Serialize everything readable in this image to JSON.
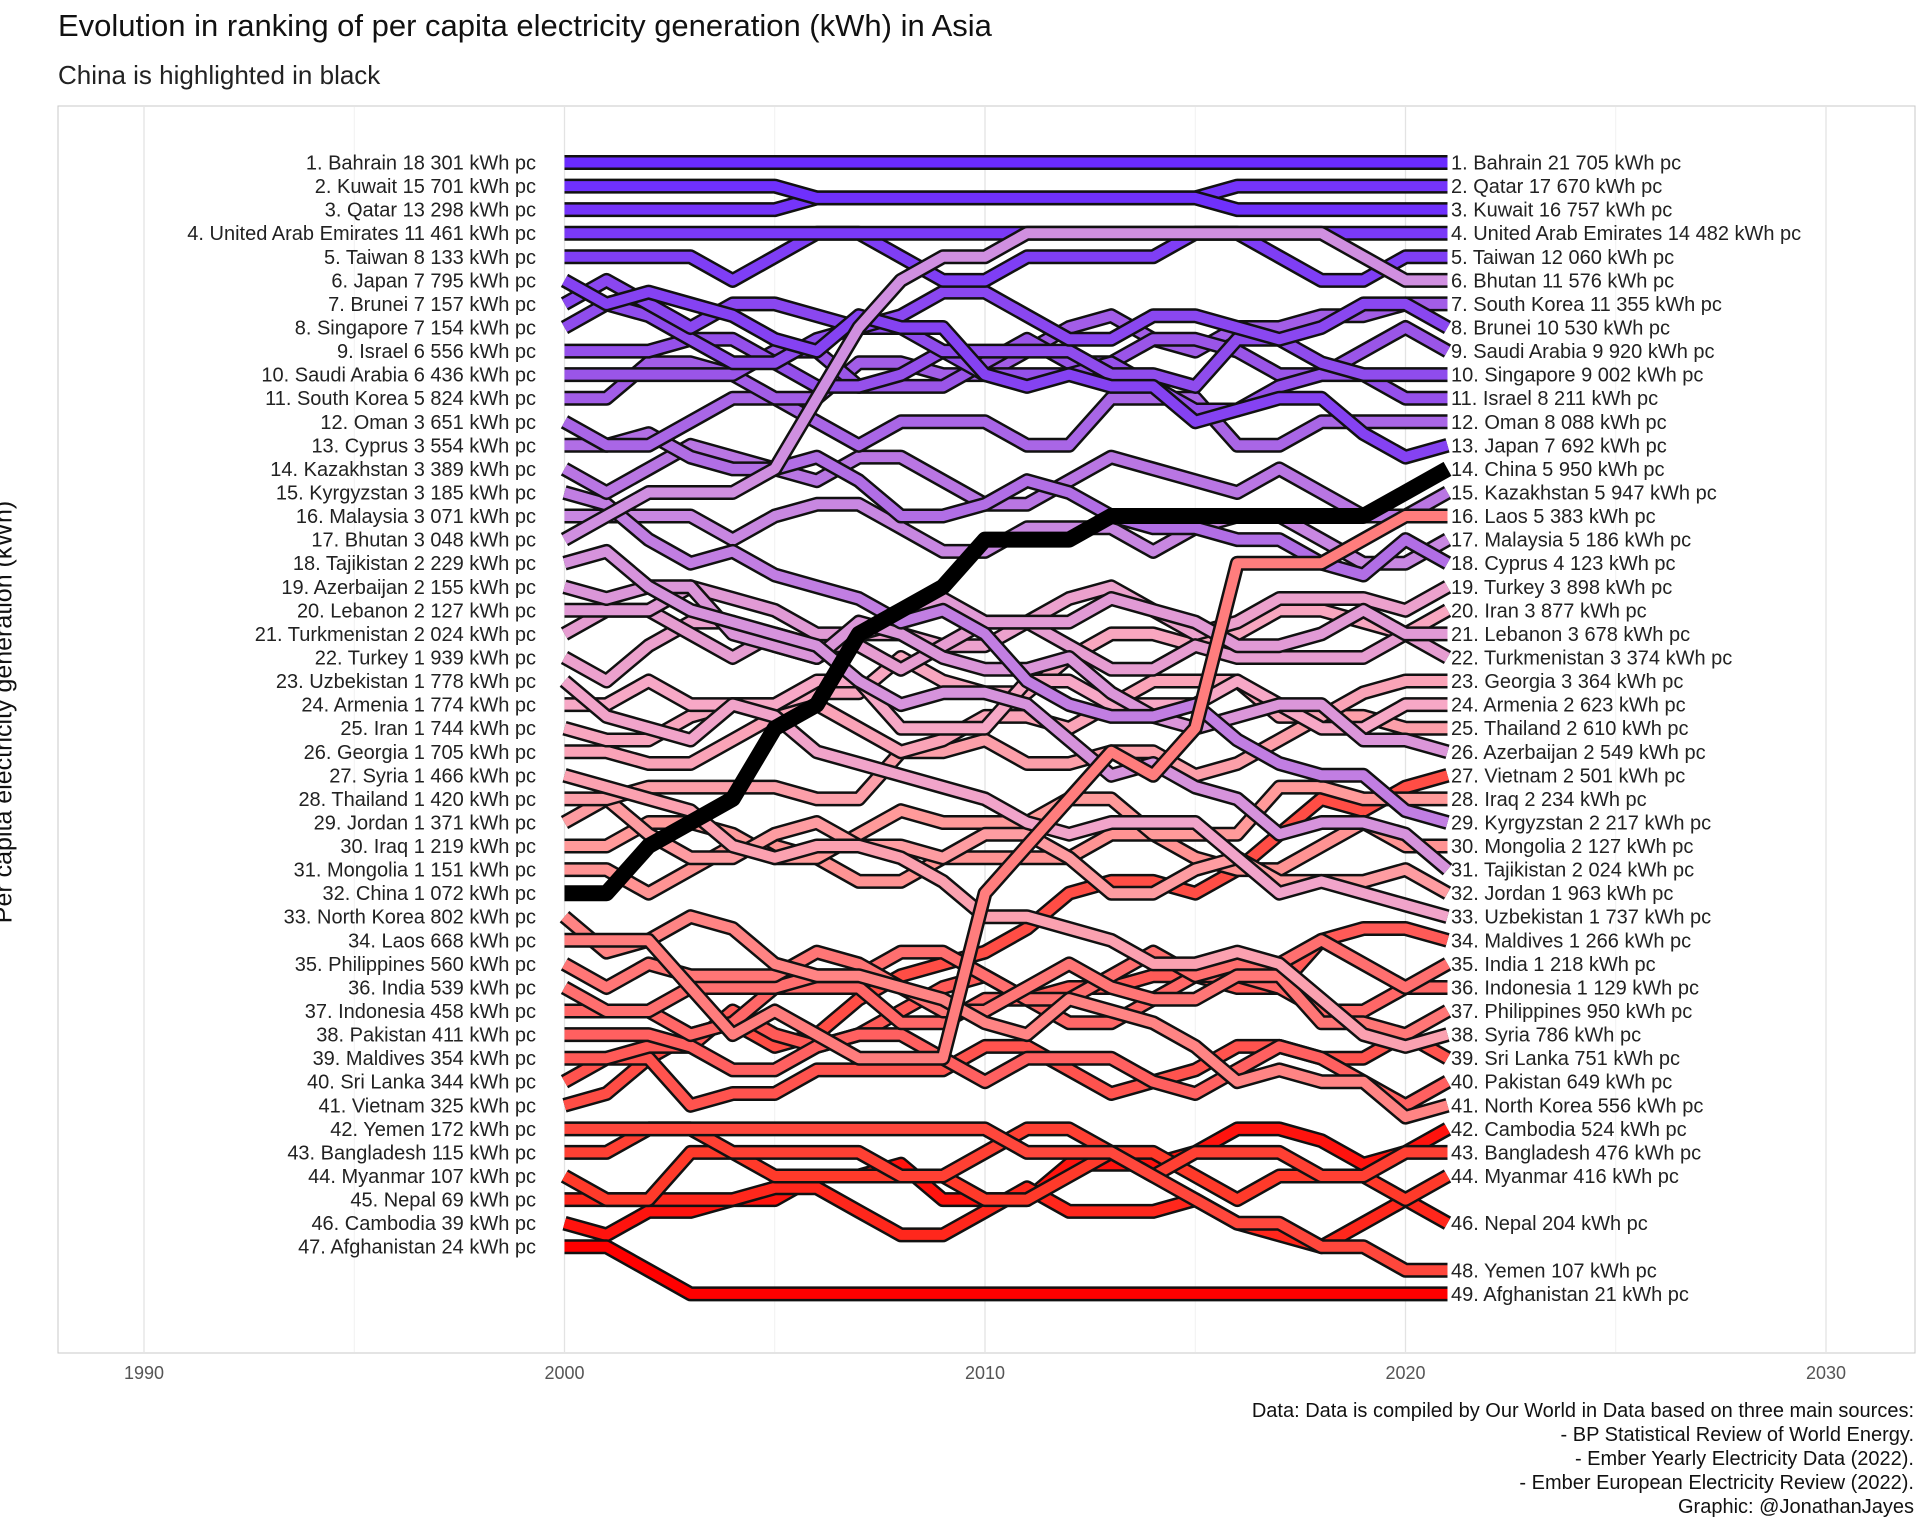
{
  "title": "Evolution in ranking of per capita electricity generation (kWh) in Asia",
  "subtitle": "China is highlighted in black",
  "caption": [
    "Data: Data is compiled by Our World in Data based on three main sources:",
    "- BP Statistical Review of World Energy.",
    "- Ember Yearly Electricity Data (2022).",
    "- Ember European Electricity Review (2022).",
    "Graphic: @JonathanJayes"
  ],
  "chart_data": {
    "type": "line",
    "title": "Evolution in ranking of per capita electricity generation (kWh) in Asia",
    "subtitle": "China is highlighted in black",
    "xlabel": "",
    "ylabel": "Per capita electricity generation (kWh)",
    "xlim": [
      1988,
      2032
    ],
    "x_ticks": [
      1990,
      2000,
      2010,
      2020,
      2030
    ],
    "y_reversed": true,
    "grid": true,
    "legend": "none",
    "highlight": {
      "name": "China",
      "color": "#000000"
    },
    "colors": {
      "top": "#6a2bff",
      "middle": "#f4a8d8",
      "lower": "#ff6a6a",
      "bottom": "#ff0000"
    },
    "start_year": 2000,
    "end_year": 2021,
    "start_labels": [
      "1. Bahrain 18 301 kWh pc",
      "2. Kuwait 15 701 kWh pc",
      "3. Qatar 13 298 kWh pc",
      "4. United Arab Emirates 11 461 kWh pc",
      "5. Taiwan 8 133 kWh pc",
      "6. Japan 7 795 kWh pc",
      "7. Brunei 7 157 kWh pc",
      "8. Singapore 7 154 kWh pc",
      "9. Israel 6 556 kWh pc",
      "10. Saudi Arabia 6 436 kWh pc",
      "11. South Korea 5 824 kWh pc",
      "12. Oman 3 651 kWh pc",
      "13. Cyprus 3 554 kWh pc",
      "14. Kazakhstan 3 389 kWh pc",
      "15. Kyrgyzstan 3 185 kWh pc",
      "16. Malaysia 3 071 kWh pc",
      "17. Bhutan 3 048 kWh pc",
      "18. Tajikistan 2 229 kWh pc",
      "19. Azerbaijan 2 155 kWh pc",
      "20. Lebanon 2 127 kWh pc",
      "21. Turkmenistan 2 024 kWh pc",
      "22. Turkey 1 939 kWh pc",
      "23. Uzbekistan 1 778 kWh pc",
      "24. Armenia 1 774 kWh pc",
      "25. Iran 1 744 kWh pc",
      "26. Georgia 1 705 kWh pc",
      "27. Syria 1 466 kWh pc",
      "28. Thailand 1 420 kWh pc",
      "29. Jordan 1 371 kWh pc",
      "30. Iraq 1 219 kWh pc",
      "31. Mongolia 1 151 kWh pc",
      "32. China 1 072 kWh pc",
      "33. North Korea 802 kWh pc",
      "34. Laos 668 kWh pc",
      "35. Philippines 560 kWh pc",
      "36. India 539 kWh pc",
      "37. Indonesia 458 kWh pc",
      "38. Pakistan 411 kWh pc",
      "39. Maldives 354 kWh pc",
      "40. Sri Lanka 344 kWh pc",
      "41. Vietnam 325 kWh pc",
      "42. Yemen 172 kWh pc",
      "43. Bangladesh 115 kWh pc",
      "44. Myanmar 107 kWh pc",
      "45. Nepal 69 kWh pc",
      "46. Cambodia 39 kWh pc",
      "47. Afghanistan 24 kWh pc"
    ],
    "end_labels": [
      {
        "rank": 1,
        "text": "1. Bahrain 21 705 kWh pc"
      },
      {
        "rank": 2,
        "text": "2. Qatar 17 670 kWh pc"
      },
      {
        "rank": 3,
        "text": "3. Kuwait 16 757 kWh pc"
      },
      {
        "rank": 4,
        "text": "4. United Arab Emirates 14 482 kWh pc"
      },
      {
        "rank": 5,
        "text": "5. Taiwan 12 060 kWh pc"
      },
      {
        "rank": 6,
        "text": "6. Bhutan 11 576 kWh pc"
      },
      {
        "rank": 7,
        "text": "7. South Korea 11 355 kWh pc"
      },
      {
        "rank": 8,
        "text": "8. Brunei 10 530 kWh pc"
      },
      {
        "rank": 9,
        "text": "9. Saudi Arabia 9 920 kWh pc"
      },
      {
        "rank": 10,
        "text": "10. Singapore 9 002 kWh pc"
      },
      {
        "rank": 11,
        "text": "11. Israel 8 211 kWh pc"
      },
      {
        "rank": 12,
        "text": "12. Oman 8 088 kWh pc"
      },
      {
        "rank": 13,
        "text": "13. Japan 7 692 kWh pc"
      },
      {
        "rank": 14,
        "text": "14. China 5 950 kWh pc"
      },
      {
        "rank": 15,
        "text": "15. Kazakhstan 5 947 kWh pc"
      },
      {
        "rank": 16,
        "text": "16. Laos 5 383 kWh pc"
      },
      {
        "rank": 17,
        "text": "17. Malaysia 5 186 kWh pc"
      },
      {
        "rank": 18,
        "text": "18. Cyprus 4 123 kWh pc"
      },
      {
        "rank": 19,
        "text": "19. Turkey 3 898 kWh pc"
      },
      {
        "rank": 20,
        "text": "20. Iran 3 877 kWh pc"
      },
      {
        "rank": 21,
        "text": "21. Lebanon 3 678 kWh pc"
      },
      {
        "rank": 22,
        "text": "22. Turkmenistan 3 374 kWh pc"
      },
      {
        "rank": 23,
        "text": "23. Georgia 3 364 kWh pc"
      },
      {
        "rank": 24,
        "text": "24. Armenia 2 623 kWh pc"
      },
      {
        "rank": 25,
        "text": "25. Thailand 2 610 kWh pc"
      },
      {
        "rank": 26,
        "text": "26. Azerbaijan 2 549 kWh pc"
      },
      {
        "rank": 27,
        "text": "27. Vietnam 2 501 kWh pc"
      },
      {
        "rank": 28,
        "text": "28. Iraq 2 234 kWh pc"
      },
      {
        "rank": 29,
        "text": "29. Kyrgyzstan 2 217 kWh pc"
      },
      {
        "rank": 30,
        "text": "30. Mongolia 2 127 kWh pc"
      },
      {
        "rank": 31,
        "text": "31. Tajikistan 2 024 kWh pc"
      },
      {
        "rank": 32,
        "text": "32. Jordan 1 963 kWh pc"
      },
      {
        "rank": 33,
        "text": "33. Uzbekistan 1 737 kWh pc"
      },
      {
        "rank": 34,
        "text": "34. Maldives 1 266 kWh pc"
      },
      {
        "rank": 35,
        "text": "35. India 1 218 kWh pc"
      },
      {
        "rank": 36,
        "text": "36. Indonesia 1 129 kWh pc"
      },
      {
        "rank": 37,
        "text": "37. Philippines 950 kWh pc"
      },
      {
        "rank": 38,
        "text": "38. Syria 786 kWh pc"
      },
      {
        "rank": 39,
        "text": "39. Sri Lanka 751 kWh pc"
      },
      {
        "rank": 40,
        "text": "40. Pakistan 649 kWh pc"
      },
      {
        "rank": 41,
        "text": "41. North Korea 556 kWh pc"
      },
      {
        "rank": 42,
        "text": "42. Cambodia 524 kWh pc"
      },
      {
        "rank": 43,
        "text": "43. Bangladesh 476 kWh pc"
      },
      {
        "rank": 44,
        "text": "44. Myanmar 416 kWh pc"
      },
      {
        "rank": 46,
        "text": "46. Nepal 204 kWh pc"
      },
      {
        "rank": 48,
        "text": "48. Yemen 107 kWh pc"
      },
      {
        "rank": 49,
        "text": "49. Afghanistan 21 kWh pc"
      }
    ],
    "series": [
      {
        "name": "China",
        "highlight": true,
        "ranks": [
          [
            2000,
            32
          ],
          [
            2001,
            32
          ],
          [
            2002,
            30
          ],
          [
            2003,
            29
          ],
          [
            2004,
            28
          ],
          [
            2005,
            25
          ],
          [
            2006,
            24
          ],
          [
            2007,
            21
          ],
          [
            2008,
            20
          ],
          [
            2009,
            19
          ],
          [
            2010,
            17
          ],
          [
            2011,
            17
          ],
          [
            2012,
            17
          ],
          [
            2013,
            16
          ],
          [
            2014,
            16
          ],
          [
            2015,
            16
          ],
          [
            2016,
            16
          ],
          [
            2017,
            16
          ],
          [
            2018,
            16
          ],
          [
            2019,
            16
          ],
          [
            2020,
            15
          ],
          [
            2021,
            14
          ]
        ]
      },
      {
        "name": "Bhutan",
        "ranks": [
          [
            2000,
            17
          ],
          [
            2001,
            16
          ],
          [
            2002,
            15
          ],
          [
            2003,
            15
          ],
          [
            2004,
            15
          ],
          [
            2005,
            14
          ],
          [
            2006,
            11
          ],
          [
            2007,
            8
          ],
          [
            2008,
            6
          ],
          [
            2009,
            5
          ],
          [
            2010,
            5
          ],
          [
            2011,
            4
          ],
          [
            2012,
            4
          ],
          [
            2013,
            4
          ],
          [
            2014,
            4
          ],
          [
            2015,
            4
          ],
          [
            2016,
            4
          ],
          [
            2017,
            4
          ],
          [
            2018,
            4
          ],
          [
            2019,
            5
          ],
          [
            2020,
            6
          ],
          [
            2021,
            6
          ]
        ]
      },
      {
        "name": "Laos",
        "ranks": [
          [
            2000,
            34
          ],
          [
            2001,
            34
          ],
          [
            2002,
            34
          ],
          [
            2003,
            36
          ],
          [
            2004,
            38
          ],
          [
            2005,
            37
          ],
          [
            2006,
            38
          ],
          [
            2007,
            39
          ],
          [
            2008,
            39
          ],
          [
            2009,
            39
          ],
          [
            2010,
            32
          ],
          [
            2011,
            30
          ],
          [
            2012,
            28
          ],
          [
            2013,
            26
          ],
          [
            2014,
            27
          ],
          [
            2015,
            25
          ],
          [
            2016,
            18
          ],
          [
            2017,
            18
          ],
          [
            2018,
            18
          ],
          [
            2019,
            17
          ],
          [
            2020,
            16
          ],
          [
            2021,
            16
          ]
        ]
      },
      {
        "name": "Yemen",
        "ranks": [
          [
            2000,
            42
          ],
          [
            2009,
            42
          ],
          [
            2010,
            42
          ],
          [
            2011,
            43
          ],
          [
            2012,
            43
          ],
          [
            2013,
            43
          ],
          [
            2014,
            44
          ],
          [
            2015,
            45
          ],
          [
            2016,
            46
          ],
          [
            2017,
            46
          ],
          [
            2018,
            47
          ],
          [
            2019,
            47
          ],
          [
            2020,
            48
          ],
          [
            2021,
            48
          ]
        ]
      },
      {
        "name": "Afghanistan",
        "ranks": [
          [
            2000,
            47
          ],
          [
            2001,
            47
          ],
          [
            2002,
            48
          ],
          [
            2003,
            49
          ],
          [
            2021,
            49
          ]
        ]
      }
    ]
  }
}
